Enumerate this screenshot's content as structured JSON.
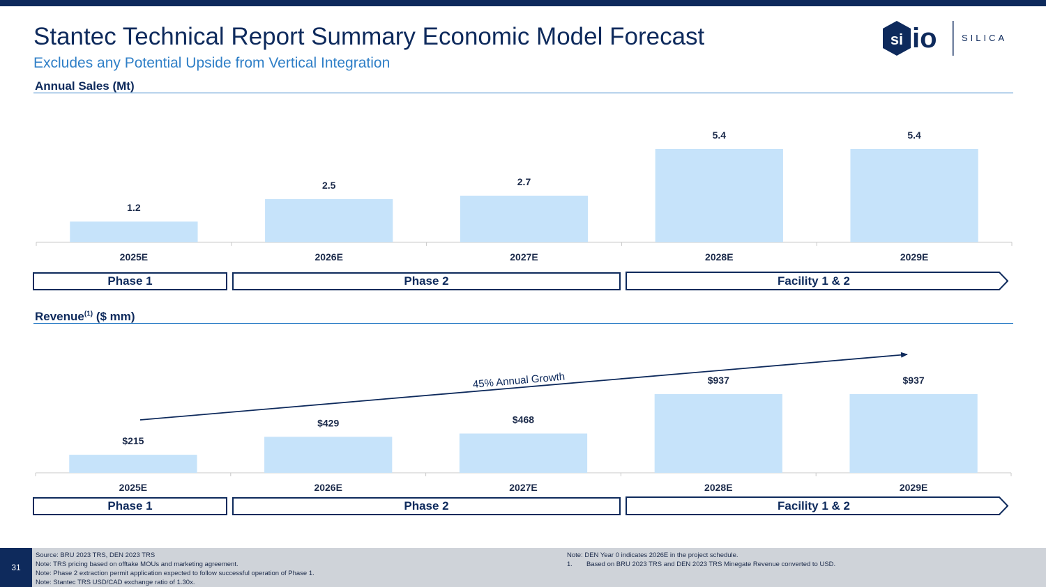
{
  "header": {
    "title": "Stantec Technical Report Summary Economic Model Forecast",
    "subtitle": "Excludes any Potential Upside from Vertical Integration",
    "logo_text": "SILICA"
  },
  "colors": {
    "navy": "#0e2a5c",
    "accent_blue": "#2f7fc7",
    "bar_fill": "#c6e3fa",
    "footer_gray": "#cfd3d9"
  },
  "sales": {
    "label": "Annual Sales (Mt)",
    "chart_data": {
      "type": "bar",
      "categories": [
        "2025E",
        "2026E",
        "2027E",
        "2028E",
        "2029E"
      ],
      "values": [
        1.2,
        2.5,
        2.7,
        5.4,
        5.4
      ],
      "value_labels": [
        "1.2",
        "2.5",
        "2.7",
        "5.4",
        "5.4"
      ],
      "ylim": [
        0,
        5.4
      ]
    },
    "phases": [
      "Phase 1",
      "Phase 2",
      "Facility 1 & 2"
    ]
  },
  "revenue": {
    "label_main": "Revenue",
    "label_sup": "(1)",
    "label_unit": " ($ mm)",
    "chart_data": {
      "type": "bar",
      "categories": [
        "2025E",
        "2026E",
        "2027E",
        "2028E",
        "2029E"
      ],
      "values": [
        215,
        429,
        468,
        937,
        937
      ],
      "value_labels": [
        "$215",
        "$429",
        "$468",
        "$937",
        "$937"
      ],
      "ylim": [
        0,
        937
      ],
      "annotation": "45% Annual Growth"
    },
    "phases": [
      "Phase 1",
      "Phase 2",
      "Facility 1 & 2"
    ]
  },
  "footer": {
    "page_number": "31",
    "left_notes": [
      "Source: BRU 2023 TRS, DEN 2023 TRS",
      "Note: TRS pricing based on offtake MOUs and marketing agreement.",
      "Note: Phase 2 extraction permit application expected to follow successful operation of Phase 1.",
      "Note: Stantec TRS USD/CAD exchange ratio of 1.30x."
    ],
    "right_note": "Note: DEN Year 0 indicates 2026E in the project schedule.",
    "footnote_number": "1.",
    "footnote_text": "Based on BRU 2023 TRS and DEN 2023 TRS Minegate Revenue converted to USD."
  }
}
